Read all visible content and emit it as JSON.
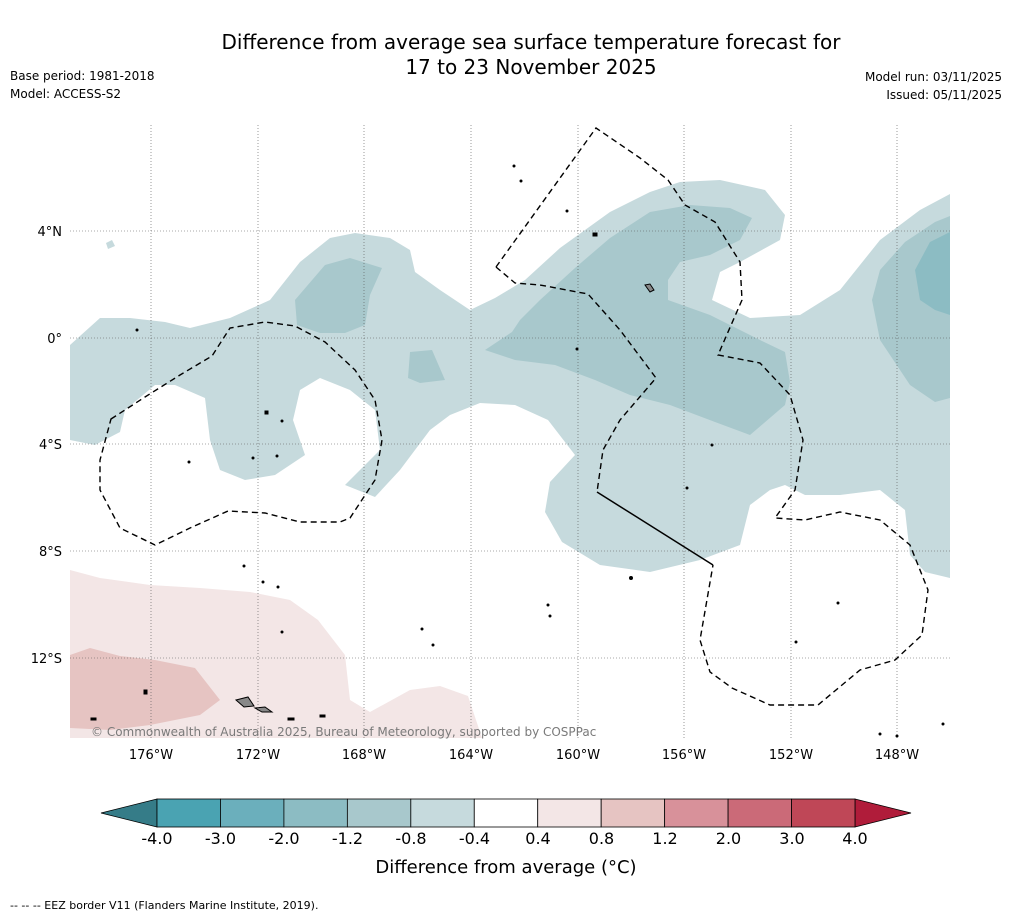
{
  "header": {
    "title_line1": "Difference from average sea surface temperature forecast for",
    "title_line2": "17 to 23 November 2025",
    "base_period": "Base period: 1981-2018",
    "model": "Model: ACCESS-S2",
    "model_run": "Model run: 03/11/2025",
    "issued": "Issued: 05/11/2025"
  },
  "map": {
    "lat_labels": [
      "4°N",
      "0°",
      "4°S",
      "8°S",
      "12°S"
    ],
    "lon_labels": [
      "176°W",
      "172°W",
      "168°W",
      "164°W",
      "160°W",
      "156°W",
      "152°W",
      "148°W"
    ],
    "copyright": "© Commonwealth of Australia 2025, Bureau of Meteorology, supported by COSPPac"
  },
  "colorbar": {
    "title": "Difference from average (°C)",
    "ticks": [
      "-4.0",
      "-3.0",
      "-2.0",
      "-1.2",
      "-0.8",
      "-0.4",
      "0.4",
      "0.8",
      "1.2",
      "2.0",
      "3.0",
      "4.0"
    ],
    "colors": [
      "#4aa3b2",
      "#6bafbc",
      "#8cbcc3",
      "#a8c8cc",
      "#c6dadd",
      "#ffffff",
      "#f3e6e6",
      "#e6c4c2",
      "#d8919a",
      "#cb6a78",
      "#bf4757"
    ],
    "low_extension_color": "#357c88",
    "high_extension_color": "#b01c3a"
  },
  "legend_note": "--  --  -- EEZ border V11 (Flanders Marine Institute, 2019)."
}
